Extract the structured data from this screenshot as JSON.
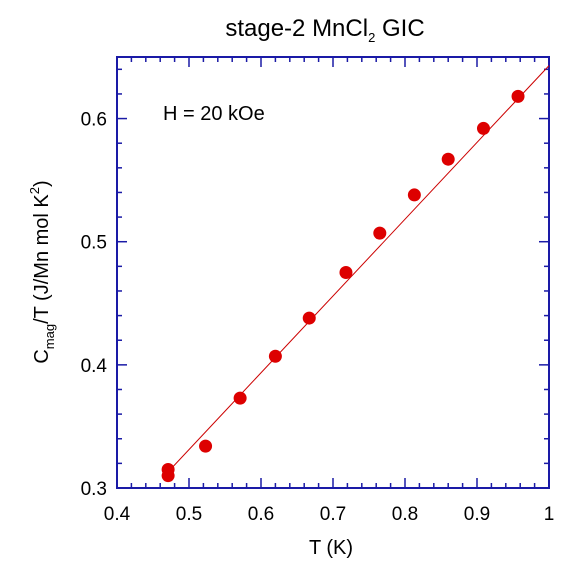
{
  "chart_data": {
    "type": "scatter",
    "title": {
      "prefix": "stage-2 MnCl",
      "subscript": "2",
      "suffix": " GIC"
    },
    "xlabel": "T (K)",
    "ylabel": {
      "main": "C",
      "subscript": "mag",
      "mid": "/T (J/Mn mol K",
      "superscript": "2",
      "end": ")"
    },
    "annotation": "H = 20 kOe",
    "xlim": [
      0.4,
      1.0
    ],
    "ylim": [
      0.3,
      0.65
    ],
    "xticks": [
      0.4,
      0.5,
      0.6,
      0.7,
      0.8,
      0.9,
      1.0
    ],
    "xtick_labels": [
      "0.4",
      "0.5",
      "0.6",
      "0.7",
      "0.8",
      "0.9",
      "1"
    ],
    "yticks": [
      0.3,
      0.4,
      0.5,
      0.6
    ],
    "ytick_labels": [
      "0.3",
      "0.4",
      "0.5",
      "0.6"
    ],
    "grid": false,
    "legend": "none",
    "colors": {
      "axis": "#1a1aa6",
      "points": "#dd0000",
      "fit_line": "#cc0000"
    },
    "series": [
      {
        "x": [
          0.471,
          0.471,
          0.523,
          0.571,
          0.62,
          0.667,
          0.718,
          0.765,
          0.813,
          0.86,
          0.909,
          0.957
        ],
        "y": [
          0.315,
          0.31,
          0.334,
          0.373,
          0.407,
          0.438,
          0.475,
          0.507,
          0.538,
          0.567,
          0.592,
          0.618
        ]
      }
    ],
    "fit_line": {
      "x": [
        0.47,
        1.0
      ],
      "y": [
        0.3125,
        0.643
      ]
    }
  }
}
